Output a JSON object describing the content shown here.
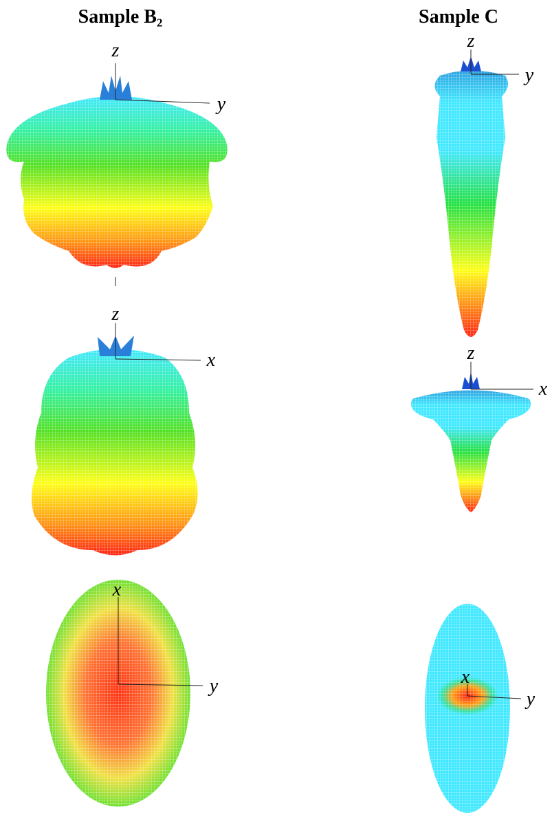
{
  "columns": [
    {
      "title": "Sample B₂",
      "panels": [
        {
          "labels": [
            "z",
            "y"
          ]
        },
        {
          "labels": [
            "z",
            "x"
          ]
        },
        {
          "labels": [
            "x",
            "y"
          ]
        }
      ]
    },
    {
      "title": "Sample C",
      "panels": [
        {
          "labels": [
            "z",
            "y"
          ]
        },
        {
          "labels": [
            "z",
            "x"
          ]
        },
        {
          "labels": [
            "x",
            "y"
          ]
        }
      ]
    }
  ]
}
